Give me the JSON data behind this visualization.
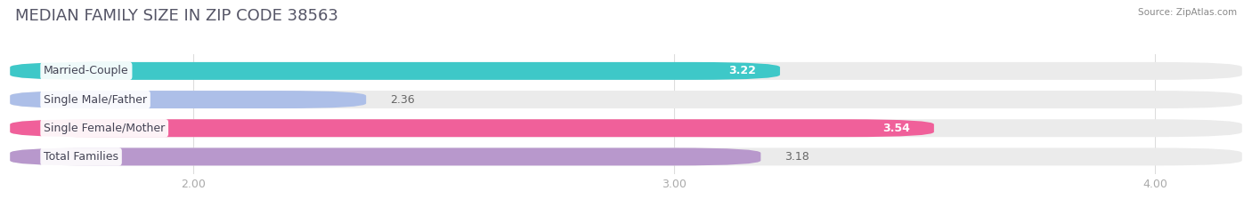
{
  "title": "MEDIAN FAMILY SIZE IN ZIP CODE 38563",
  "source": "Source: ZipAtlas.com",
  "categories": [
    "Married-Couple",
    "Single Male/Father",
    "Single Female/Mother",
    "Total Families"
  ],
  "values": [
    3.22,
    2.36,
    3.54,
    3.18
  ],
  "bar_colors": [
    "#3ec8c8",
    "#adbfe8",
    "#f0609a",
    "#b898cc"
  ],
  "value_label_inside": [
    true,
    false,
    true,
    false
  ],
  "xlim_min": 1.62,
  "xlim_max": 4.18,
  "xticks": [
    2.0,
    3.0,
    4.0
  ],
  "xtick_labels": [
    "2.00",
    "3.00",
    "4.00"
  ],
  "bar_height": 0.62,
  "background_color": "#ffffff",
  "track_color": "#ebebeb",
  "title_fontsize": 13,
  "label_fontsize": 9,
  "value_fontsize": 9,
  "tick_fontsize": 9,
  "label_box_color": "#ffffff",
  "title_color": "#555566",
  "source_color": "#888888",
  "tick_color": "#aaaaaa",
  "value_color_inside": "#ffffff",
  "value_color_outside": "#666666"
}
